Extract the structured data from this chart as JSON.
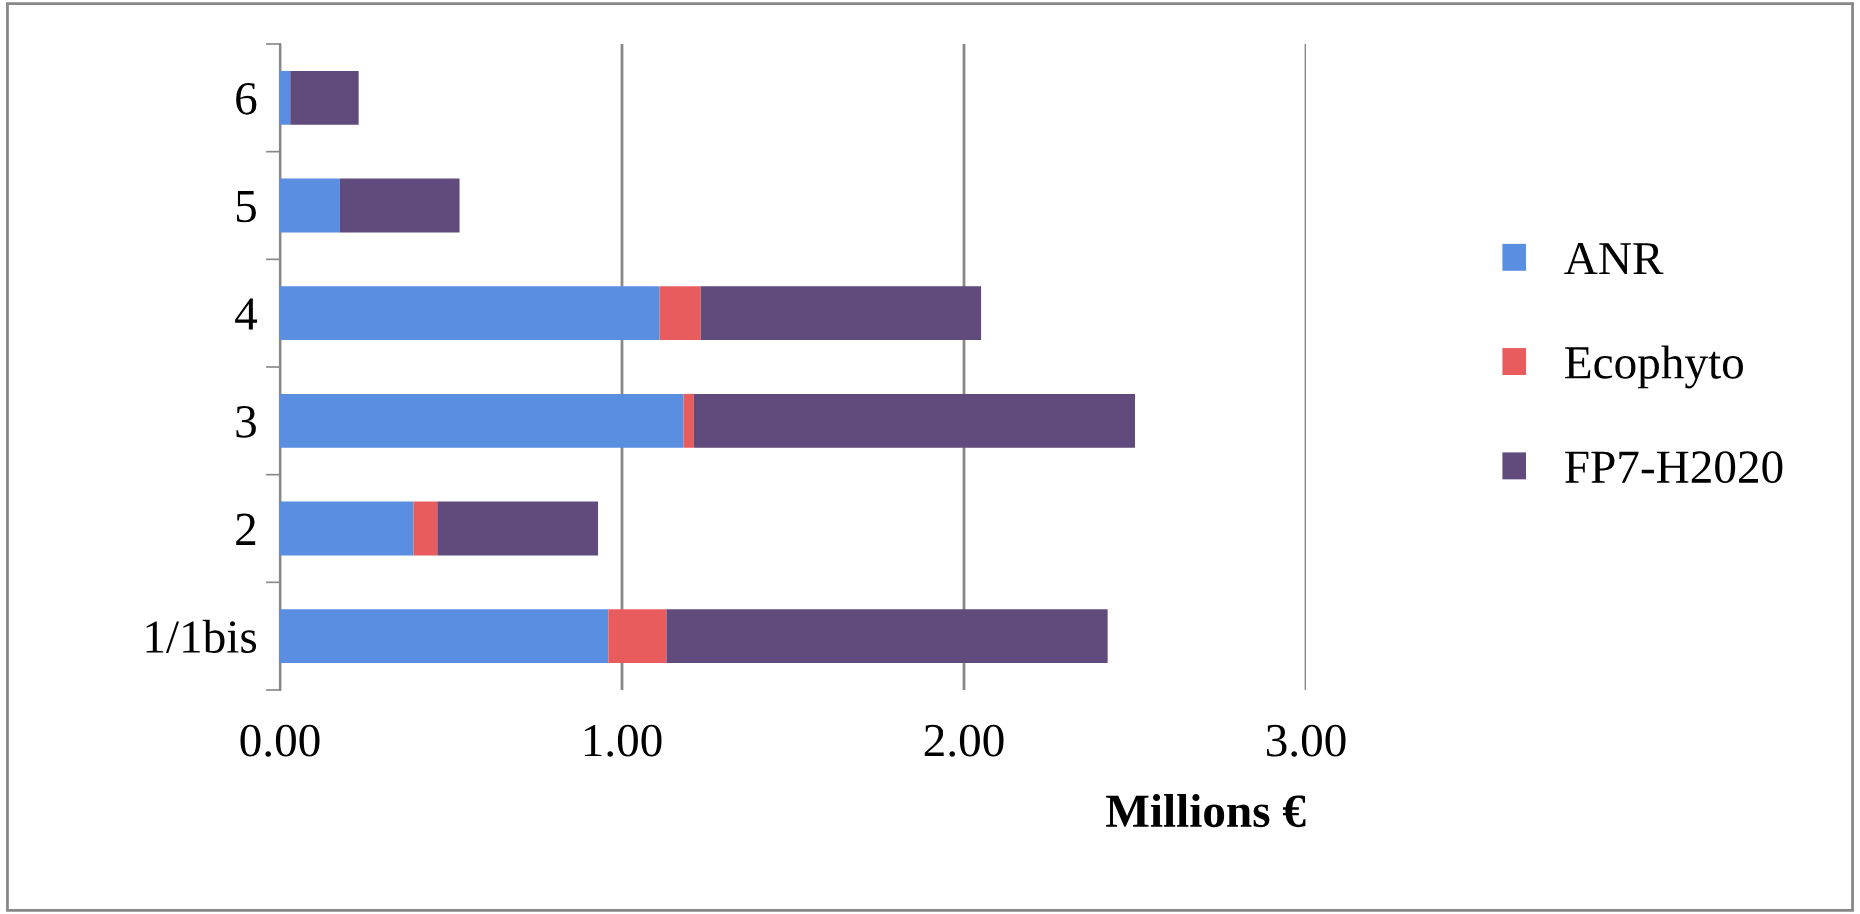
{
  "chart_data": {
    "type": "bar",
    "orientation": "horizontal",
    "stacked": true,
    "categories": [
      "6",
      "5",
      "4",
      "3",
      "2",
      "1/1bis"
    ],
    "series": [
      {
        "name": "ANR",
        "color": "#5a8ee0",
        "values": [
          0.03,
          0.175,
          1.11,
          1.18,
          0.39,
          0.96
        ]
      },
      {
        "name": "Ecophyto",
        "color": "#e85c5e",
        "values": [
          0.0,
          0.0,
          0.12,
          0.03,
          0.07,
          0.17
        ]
      },
      {
        "name": "FP7-H2020",
        "color": "#614a7c",
        "values": [
          0.2,
          0.35,
          0.82,
          1.29,
          0.47,
          1.29
        ]
      }
    ],
    "xlabel": "Millions €",
    "xlim": [
      0,
      3
    ],
    "xticks": [
      {
        "value": 0,
        "label": "0.00"
      },
      {
        "value": 1,
        "label": "1.00"
      },
      {
        "value": 2,
        "label": "2.00"
      },
      {
        "value": 3,
        "label": "3.00"
      }
    ],
    "grid": "x",
    "legend": "right"
  }
}
